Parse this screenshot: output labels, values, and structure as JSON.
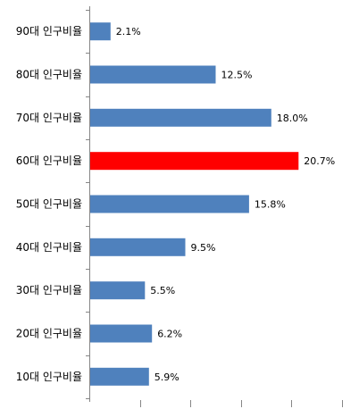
{
  "chart_data": {
    "type": "bar",
    "orientation": "horizontal",
    "title": "",
    "xlabel": "",
    "ylabel": "",
    "categories": [
      "10대 인구비율",
      "20대 인구비율",
      "30대 인구비율",
      "40대 인구비율",
      "50대 인구비율",
      "60대 인구비율",
      "70대 인구비율",
      "80대 인구비율",
      "90대 인구비율"
    ],
    "values": [
      5.9,
      6.2,
      5.5,
      9.5,
      15.8,
      20.7,
      18.0,
      12.5,
      2.1
    ],
    "value_labels": [
      "5.9%",
      "6.2%",
      "5.5%",
      "9.5%",
      "15.8%",
      "20.7%",
      "18.0%",
      "12.5%",
      "2.1%"
    ],
    "xlim": [
      0,
      25
    ],
    "x_tick_count": 5,
    "grid": false,
    "legend": "none",
    "colors": {
      "default_bar": "#4F81BD",
      "highlight_bar": "#FF0000",
      "axis": "#868686"
    },
    "highlight_category": "60대 인구비율"
  }
}
